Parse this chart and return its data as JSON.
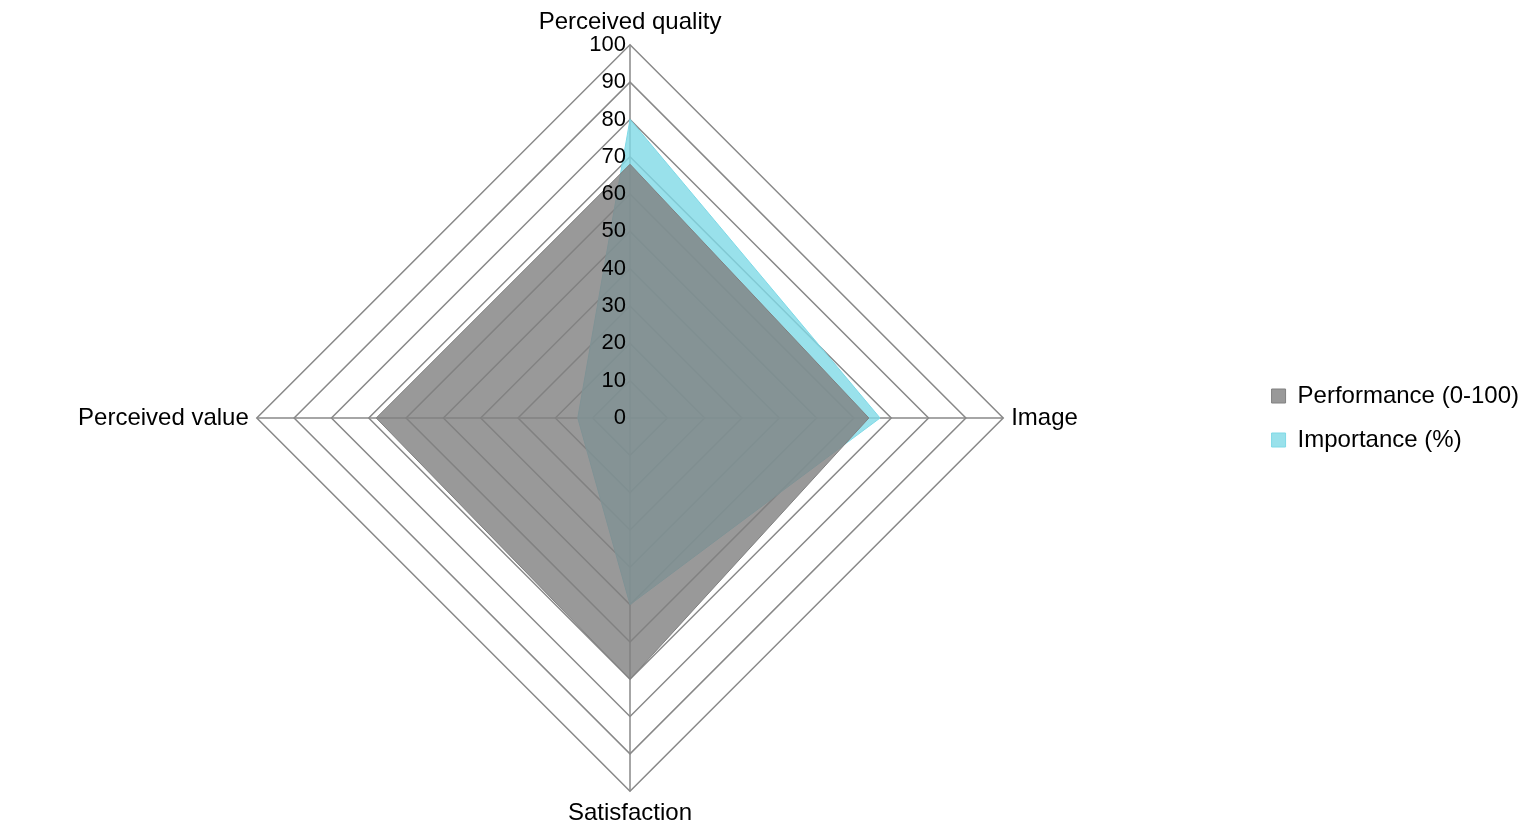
{
  "chart_data": {
    "type": "radar",
    "categories": [
      "Perceived quality",
      "Image",
      "Satisfaction",
      "Perceived value"
    ],
    "series": [
      {
        "name": "Performance (0-100)",
        "color": "#808080",
        "values": [
          68,
          64,
          70,
          68
        ]
      },
      {
        "name": "Importance (%)",
        "color": "#7fd9e6",
        "values": [
          80,
          67,
          50,
          14
        ]
      }
    ],
    "ylim": [
      0,
      100
    ],
    "yticks": [
      0,
      10,
      20,
      30,
      40,
      50,
      60,
      70,
      80,
      90,
      100
    ],
    "legend": "right",
    "grid": true,
    "marker": "none"
  }
}
